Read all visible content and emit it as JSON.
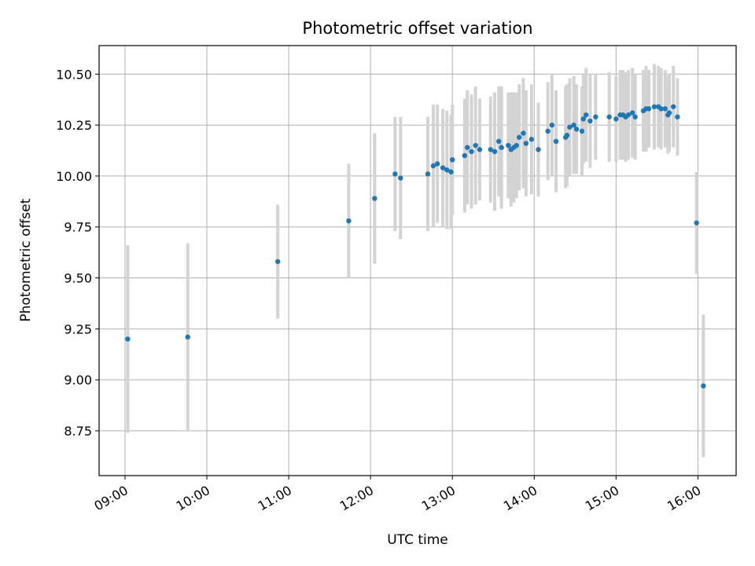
{
  "chart_data": {
    "type": "scatter",
    "title": "Photometric offset variation",
    "xlabel": "UTC time",
    "ylabel": "Photometric offset",
    "x_axis": "time",
    "xlim": [
      "08:41",
      "16:28"
    ],
    "ylim": [
      8.53,
      10.64
    ],
    "x_ticks": [
      "09:00",
      "10:00",
      "11:00",
      "12:00",
      "13:00",
      "14:00",
      "15:00",
      "16:00"
    ],
    "y_ticks": [
      "8.75",
      "9.00",
      "9.25",
      "9.50",
      "9.75",
      "10.00",
      "10.25",
      "10.50"
    ],
    "grid": true,
    "legend": false,
    "colors": {
      "points": "#1f77b4",
      "error_bars": "#d3d3d3",
      "grid": "#b0b0b0"
    },
    "x": [
      "09:02",
      "09:46",
      "10:52",
      "11:44",
      "12:03",
      "12:18",
      "12:22",
      "12:42",
      "12:46",
      "12:49",
      "12:53",
      "12:56",
      "12:59",
      "13:00",
      "13:09",
      "13:11",
      "13:14",
      "13:17",
      "13:20",
      "13:28",
      "13:31",
      "13:34",
      "13:36",
      "13:41",
      "13:43",
      "13:45",
      "13:47",
      "13:49",
      "13:52",
      "13:54",
      "13:58",
      "14:03",
      "14:10",
      "14:13",
      "14:16",
      "14:23",
      "14:24",
      "14:26",
      "14:29",
      "14:31",
      "14:35",
      "14:36",
      "14:38",
      "14:41",
      "14:45",
      "14:55",
      "15:00",
      "15:03",
      "15:05",
      "15:07",
      "15:09",
      "15:12",
      "15:14",
      "15:20",
      "15:22",
      "15:24",
      "15:28",
      "15:31",
      "15:33",
      "15:36",
      "15:38",
      "15:39",
      "15:42",
      "15:45",
      "15:59",
      "16:04"
    ],
    "y": [
      9.2,
      9.21,
      9.58,
      9.78,
      9.89,
      10.01,
      9.99,
      10.01,
      10.05,
      10.06,
      10.04,
      10.03,
      10.02,
      10.08,
      10.1,
      10.14,
      10.12,
      10.15,
      10.13,
      10.13,
      10.12,
      10.17,
      10.14,
      10.15,
      10.13,
      10.14,
      10.15,
      10.19,
      10.21,
      10.16,
      10.18,
      10.13,
      10.22,
      10.25,
      10.17,
      10.19,
      10.2,
      10.24,
      10.25,
      10.23,
      10.22,
      10.28,
      10.3,
      10.27,
      10.29,
      10.29,
      10.28,
      10.3,
      10.3,
      10.29,
      10.3,
      10.31,
      10.29,
      10.32,
      10.33,
      10.33,
      10.34,
      10.34,
      10.33,
      10.33,
      10.3,
      10.31,
      10.34,
      10.29,
      9.77,
      8.97
    ],
    "yerr": [
      0.46,
      0.46,
      0.28,
      0.28,
      0.32,
      0.28,
      0.3,
      0.28,
      0.3,
      0.29,
      0.29,
      0.29,
      0.28,
      0.27,
      0.28,
      0.28,
      0.28,
      0.29,
      0.25,
      0.26,
      0.29,
      0.27,
      0.3,
      0.26,
      0.28,
      0.27,
      0.26,
      0.26,
      0.27,
      0.26,
      0.27,
      0.23,
      0.24,
      0.25,
      0.25,
      0.25,
      0.25,
      0.24,
      0.24,
      0.22,
      0.22,
      0.22,
      0.23,
      0.23,
      0.21,
      0.22,
      0.21,
      0.22,
      0.22,
      0.22,
      0.22,
      0.22,
      0.21,
      0.2,
      0.21,
      0.19,
      0.21,
      0.2,
      0.2,
      0.19,
      0.19,
      0.19,
      0.2,
      0.19,
      0.25,
      0.35
    ]
  }
}
